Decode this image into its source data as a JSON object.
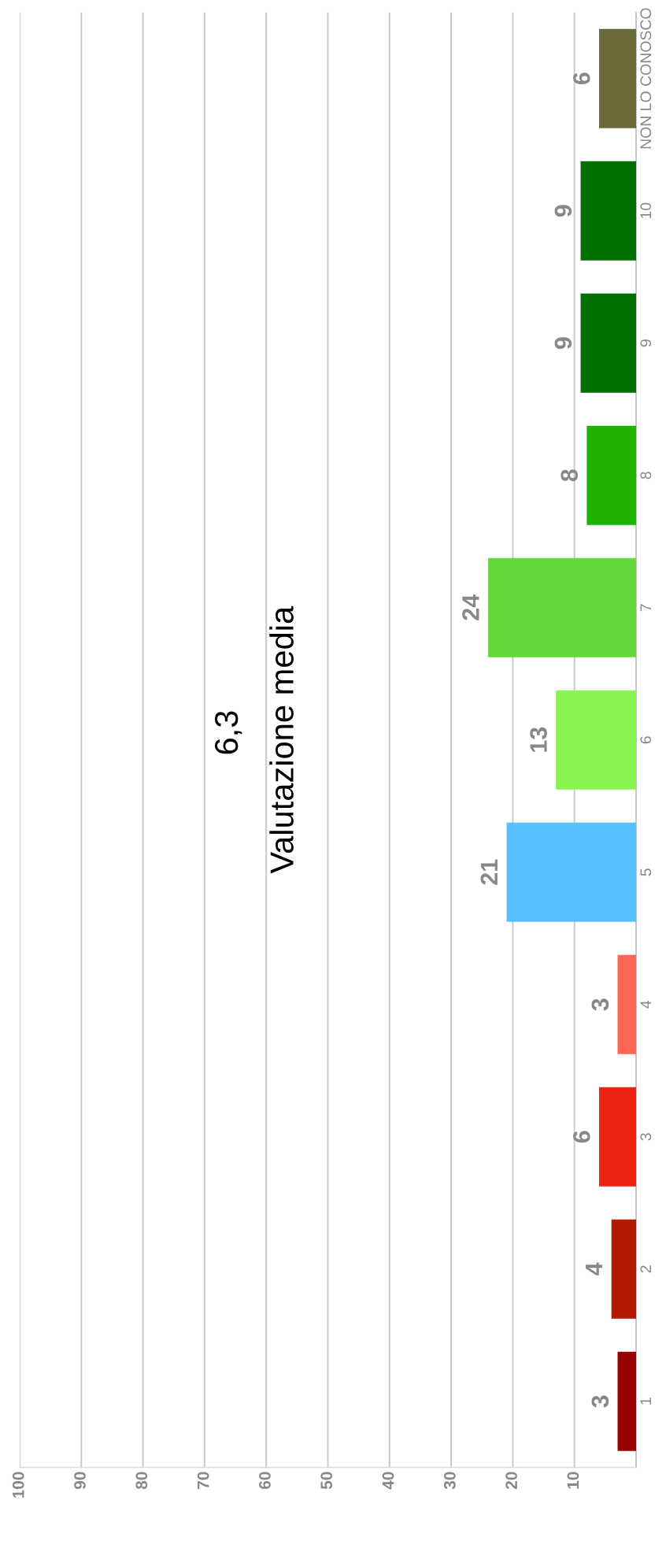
{
  "chart_data": {
    "type": "bar",
    "orientation": "horizontal",
    "categories": [
      "NON LO CONOSCO",
      "10",
      "9",
      "8",
      "7",
      "6",
      "5",
      "4",
      "3",
      "2",
      "1"
    ],
    "values": [
      6,
      9,
      9,
      8,
      24,
      13,
      21,
      3,
      6,
      4,
      3
    ],
    "colors": [
      "#6b6b3a",
      "#006e00",
      "#006e00",
      "#1db300",
      "#66d93a",
      "#88f550",
      "#55bfff",
      "#ff6655",
      "#ee2211",
      "#b31a00",
      "#990000"
    ],
    "data_labels": true,
    "xlim": [
      100,
      0
    ],
    "xticks": [
      100,
      90,
      80,
      70,
      60,
      50,
      40,
      30,
      20,
      10
    ],
    "grid": "x",
    "annotations": [
      "6,3",
      "Valutazione media"
    ]
  }
}
